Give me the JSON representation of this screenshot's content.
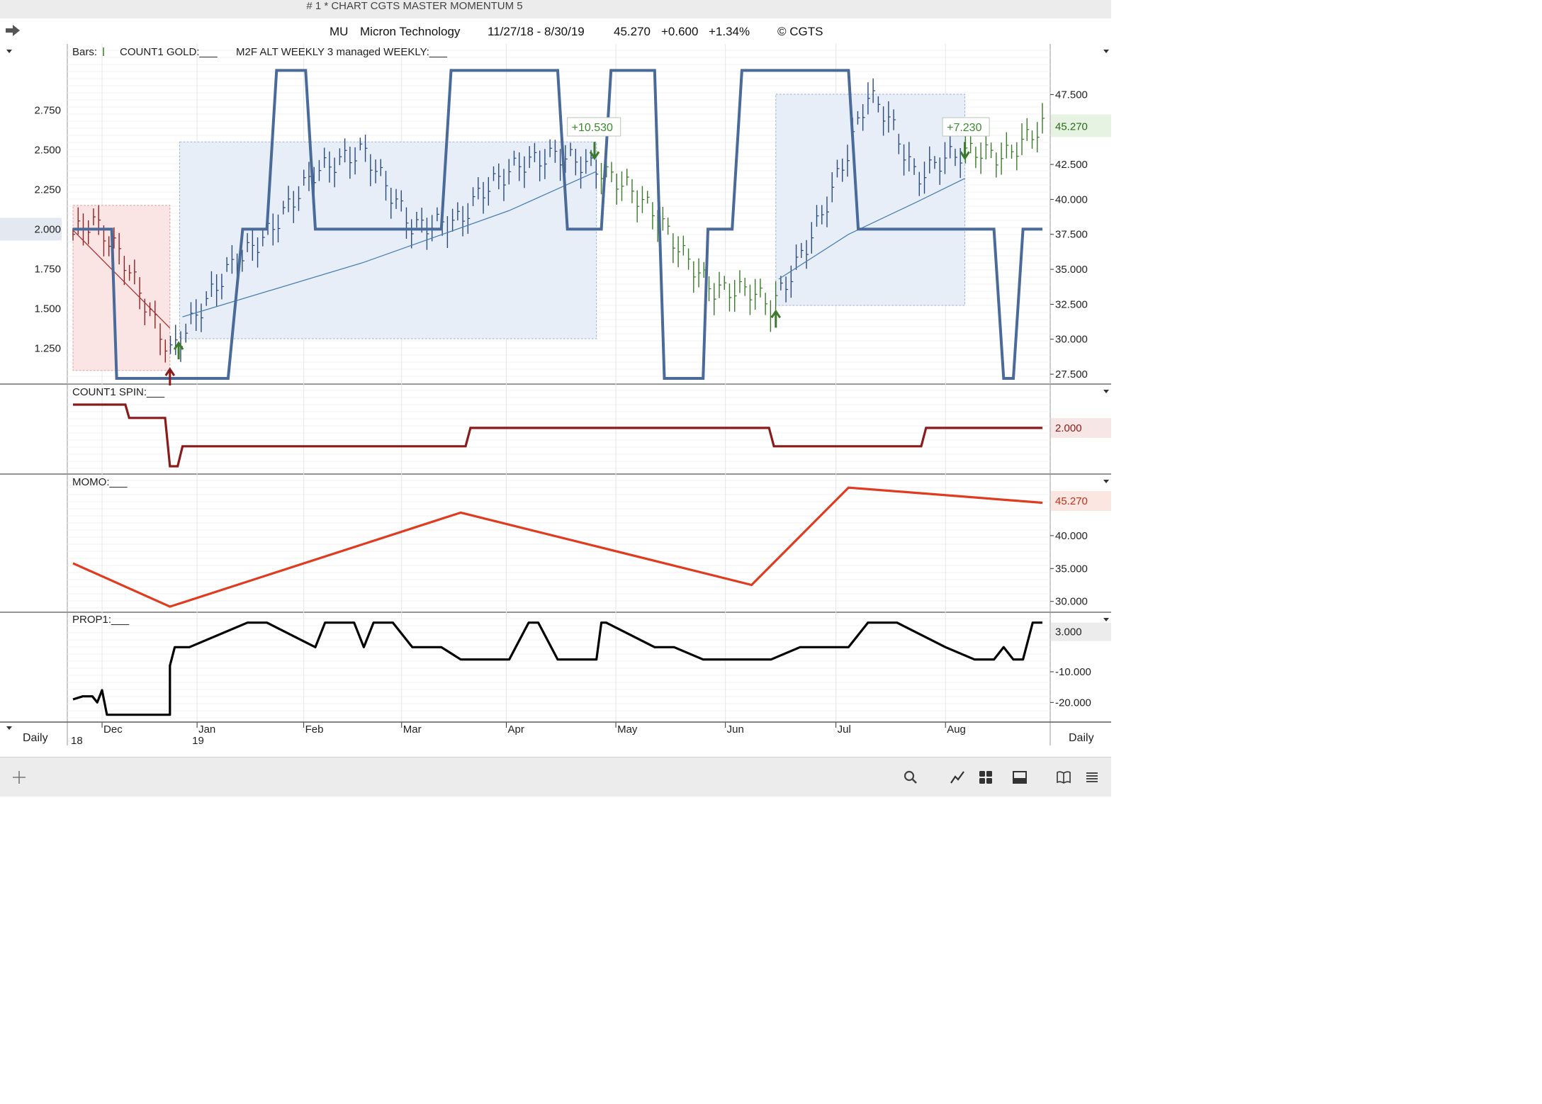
{
  "window": {
    "title": "# 1 * CHART CGTS MASTER MOMENTUM 5"
  },
  "header": {
    "symbol": "MU",
    "name": "Micron Technology",
    "range": "11/27/18 - 8/30/19",
    "last": "45.270",
    "change": "+0.600",
    "pct": "+1.34%",
    "copyright": "© CGTS"
  },
  "footer": {
    "period_left": "Daily",
    "period_right": "Daily"
  },
  "colors": {
    "gold": "#4a6a99",
    "spin": "#8b1a1a",
    "momo": "#e03a1f",
    "prop": "#000000",
    "bars_up": "#3a7a2a",
    "bars_down": "#2a4a7a",
    "long_box": "#e8eef8",
    "short_box": "#fbe4e4"
  },
  "chart_data": [
    {
      "type": "line",
      "panel": "price",
      "legend": {
        "bars": "Bars:",
        "count1_gold": "COUNT1 GOLD:___",
        "m2f": "M2F ALT WEEKLY 3 managed WEEKLY:___"
      },
      "left_axis_ticks": [
        "2.750",
        "2.500",
        "2.250",
        "2.000",
        "1.750",
        "1.500",
        "1.250"
      ],
      "left_axis_values": [
        2.75,
        2.5,
        2.25,
        2.0,
        1.75,
        1.5,
        1.25
      ],
      "left_axis_highlight": "2.000",
      "left_ylim": [
        1.06,
        3.06
      ],
      "right_axis_ticks": [
        "47.500",
        "42.500",
        "40.000",
        "37.500",
        "35.000",
        "32.500",
        "30.000",
        "27.500"
      ],
      "right_axis_values": [
        47.5,
        42.5,
        40.0,
        37.5,
        35.0,
        32.5,
        30.0,
        27.5
      ],
      "right_axis_highlight": "45.270",
      "right_ylim": [
        27.2,
        49.9
      ],
      "annotations": [
        "+10.530",
        "+7.230"
      ],
      "gold_series": {
        "x": [
          0.0,
          0.03,
          0.04,
          0.045,
          0.16,
          0.175,
          0.2,
          0.21,
          0.24,
          0.25,
          0.38,
          0.39,
          0.5,
          0.51,
          0.545,
          0.555,
          0.6,
          0.61,
          0.62,
          0.63,
          0.65,
          0.655,
          0.68,
          0.69,
          0.75,
          0.76,
          0.8,
          0.81,
          0.95,
          0.96,
          0.97,
          0.98,
          1.0
        ],
        "y": [
          2.0,
          2.0,
          2.0,
          1.06,
          1.06,
          2.0,
          2.0,
          3.0,
          3.0,
          2.0,
          2.0,
          3.0,
          3.0,
          2.0,
          2.0,
          3.0,
          3.0,
          1.06,
          1.06,
          1.06,
          1.06,
          2.0,
          2.0,
          3.0,
          3.0,
          3.0,
          3.0,
          2.0,
          2.0,
          1.06,
          1.06,
          2.0,
          2.0
        ]
      }
    },
    {
      "type": "line",
      "panel": "spin",
      "series": [
        {
          "name": "COUNT1 SPIN:___"
        }
      ],
      "right_axis_highlight": "2.000",
      "x": [
        0.0,
        0.054,
        0.058,
        0.095,
        0.1,
        0.102,
        0.108,
        0.113,
        0.405,
        0.41,
        0.718,
        0.723,
        0.875,
        0.88,
        1.0
      ],
      "y": [
        4,
        4,
        3.2,
        3.2,
        0.3,
        0.3,
        0.3,
        1.5,
        1.5,
        2.6,
        2.6,
        1.5,
        1.5,
        2.6,
        2.6
      ]
    },
    {
      "type": "line",
      "panel": "momo",
      "series": [
        {
          "name": "MOMO:___"
        }
      ],
      "right_axis_ticks": [
        "45.270",
        "40.000",
        "35.000",
        "30.000"
      ],
      "right_axis_values": [
        45.27,
        40.0,
        35.0,
        30.0
      ],
      "right_axis_highlight": "45.270",
      "ylim": [
        29.0,
        48.5
      ],
      "x": [
        0.0,
        0.1,
        0.4,
        0.7,
        0.8,
        1.0
      ],
      "y": [
        35.8,
        29.2,
        43.5,
        32.5,
        47.3,
        45.0
      ]
    },
    {
      "type": "line",
      "panel": "prop",
      "series": [
        {
          "name": "PROP1:___"
        }
      ],
      "right_axis_ticks": [
        "3.000",
        "-10.000",
        "-20.000"
      ],
      "right_axis_values": [
        3.0,
        -10.0,
        -20.0
      ],
      "right_axis_highlight": "3.000",
      "ylim": [
        -25.0,
        8.0
      ],
      "x": [
        0.0,
        0.01,
        0.02,
        0.025,
        0.03,
        0.035,
        0.04,
        0.045,
        0.06,
        0.08,
        0.1,
        0.1,
        0.105,
        0.11,
        0.12,
        0.18,
        0.2,
        0.2,
        0.25,
        0.26,
        0.27,
        0.29,
        0.3,
        0.31,
        0.32,
        0.33,
        0.35,
        0.38,
        0.4,
        0.45,
        0.47,
        0.48,
        0.5,
        0.54,
        0.545,
        0.55,
        0.6,
        0.62,
        0.65,
        0.7,
        0.72,
        0.75,
        0.8,
        0.82,
        0.85,
        0.9,
        0.93,
        0.95,
        0.96,
        0.97,
        0.98,
        0.99,
        1.0
      ],
      "y": [
        -19,
        -18,
        -18,
        -20,
        -16,
        -24,
        -24,
        -24,
        -24,
        -24,
        -24,
        -8,
        -2,
        -2,
        -2,
        6,
        6,
        6,
        -2,
        6,
        6,
        6,
        -2,
        6,
        6,
        6,
        -2,
        -2,
        -6,
        -6,
        6,
        6,
        -6,
        -6,
        6,
        6,
        -2,
        -2,
        -6,
        -6,
        -6,
        -2,
        -2,
        6,
        6,
        -2,
        -6,
        -6,
        -2,
        -6,
        -6,
        6,
        6
      ]
    }
  ],
  "x_axis": {
    "months": [
      "Dec",
      "Jan",
      "Feb",
      "Mar",
      "Apr",
      "May",
      "Jun",
      "Jul",
      "Aug"
    ],
    "years": [
      "18",
      "19"
    ]
  }
}
